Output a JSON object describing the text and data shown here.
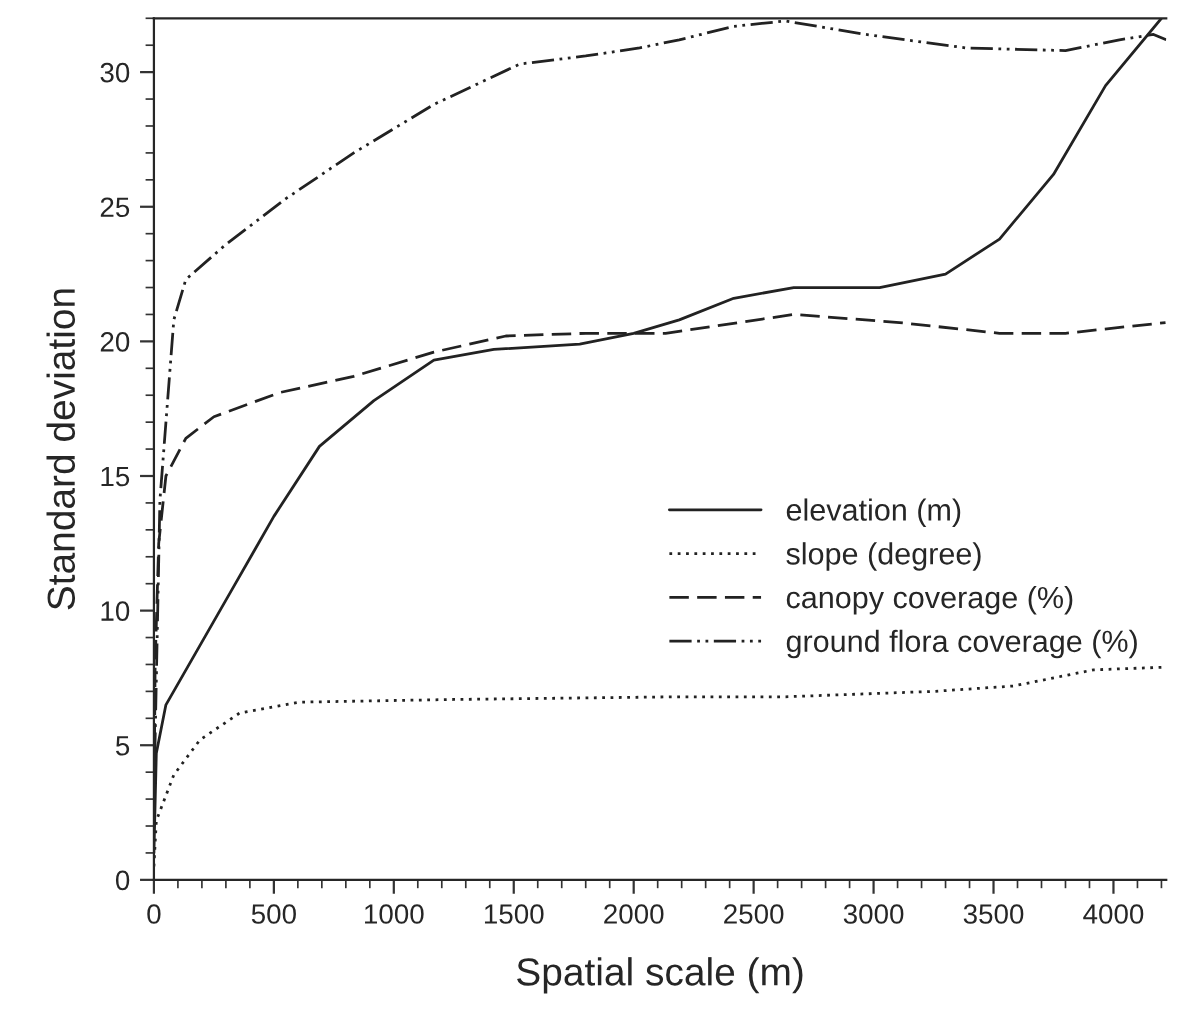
{
  "chart_data": {
    "type": "line",
    "xlabel": "Spatial scale (m)",
    "ylabel": "Standard deviation",
    "xlim": [
      0,
      4220
    ],
    "ylim": [
      0,
      32
    ],
    "xticks": [
      0,
      500,
      1000,
      1500,
      2000,
      2500,
      3000,
      3500,
      4000
    ],
    "yticks": [
      0,
      5,
      10,
      15,
      20,
      25,
      30
    ],
    "grid": false,
    "legend": "right",
    "marker": "none",
    "series": [
      {
        "name": "elevation (m)",
        "color": "#222222",
        "line_style": "solid",
        "x": [
          0,
          10,
          50,
          333,
          500,
          690,
          917,
          1167,
          1417,
          1775,
          2000,
          2190,
          2417,
          2667,
          3025,
          3300,
          3525,
          3750,
          3967,
          4200
        ],
        "values": [
          1,
          4.7,
          6.5,
          10.9,
          13.5,
          16.1,
          17.8,
          19.3,
          19.7,
          19.9,
          20.3,
          20.8,
          21.6,
          22.0,
          22.0,
          22.5,
          23.8,
          26.2,
          29.5,
          32
        ]
      },
      {
        "name": "slope (degree)",
        "color": "#222222",
        "line_style": "dotted",
        "x": [
          0,
          10,
          83,
          192,
          358,
          608,
          1250,
          2190,
          2633,
          3250,
          3583,
          3917,
          4220
        ],
        "values": [
          0.5,
          2.2,
          3.9,
          5.2,
          6.2,
          6.6,
          6.7,
          6.8,
          6.8,
          7.0,
          7.2,
          7.8,
          7.9
        ]
      },
      {
        "name": "canopy coverage (%)",
        "color": "#222222",
        "line_style": "dashed",
        "x": [
          0,
          5,
          20,
          50,
          133,
          250,
          525,
          833,
          1167,
          1467,
          1800,
          2133,
          2667,
          3108,
          3525,
          3800,
          4217
        ],
        "values": [
          2,
          8,
          12.5,
          15,
          16.4,
          17.2,
          18.1,
          18.7,
          19.6,
          20.2,
          20.3,
          20.3,
          21.0,
          20.7,
          20.3,
          20.3,
          20.7
        ]
      },
      {
        "name": "ground flora coverage (%)",
        "color": "#222222",
        "line_style": "dashdotdot",
        "x": [
          0,
          25,
          83,
          133,
          300,
          550,
          833,
          1167,
          1525,
          1800,
          2025,
          2190,
          2417,
          2633,
          2967,
          3383,
          3800,
          4025,
          4167,
          4220
        ],
        "values": [
          3,
          14.1,
          20.8,
          22.3,
          23.6,
          25.3,
          27.0,
          28.8,
          30.3,
          30.6,
          30.9,
          31.2,
          31.7,
          31.9,
          31.4,
          30.9,
          30.8,
          31.2,
          31.4,
          31.2
        ]
      }
    ]
  }
}
